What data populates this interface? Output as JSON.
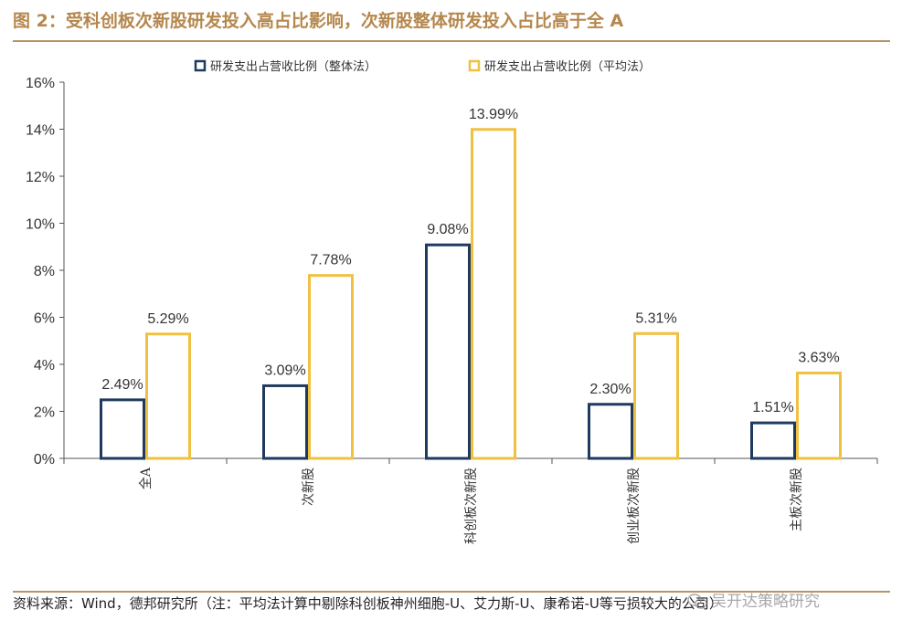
{
  "figure": {
    "title": "图 2：受科创板次新股研发投入高占比影响，次新股整体研发投入占比高于全 A",
    "source": "资料来源：Wind，德邦研究所（注：平均法计算中剔除科创板神州细胞-U、艾力斯-U、康希诺-U等亏损较大的公司）",
    "watermark": "吴开达策略研究"
  },
  "chart_data": {
    "type": "bar",
    "categories": [
      "全A",
      "次新股",
      "科创板次新股",
      "创业板次新股",
      "主板次新股"
    ],
    "series": [
      {
        "name": "研发支出占营收比例（整体法）",
        "values": [
          2.49,
          3.09,
          9.08,
          2.3,
          1.51
        ],
        "labels": [
          "2.49%",
          "3.09%",
          "9.08%",
          "2.30%",
          "1.51%"
        ],
        "color": "#1f3a5f"
      },
      {
        "name": "研发支出占营收比例（平均法）",
        "values": [
          5.29,
          7.78,
          13.99,
          5.31,
          3.63
        ],
        "labels": [
          "5.29%",
          "7.78%",
          "13.99%",
          "5.31%",
          "3.63%"
        ],
        "color": "#f0c040"
      }
    ],
    "yticks": [
      "0%",
      "2%",
      "4%",
      "6%",
      "8%",
      "10%",
      "12%",
      "14%",
      "16%"
    ],
    "ylim": [
      0,
      16
    ],
    "ystep": 2,
    "legend_position": "top",
    "grid": false,
    "xlabel": "",
    "ylabel": ""
  }
}
